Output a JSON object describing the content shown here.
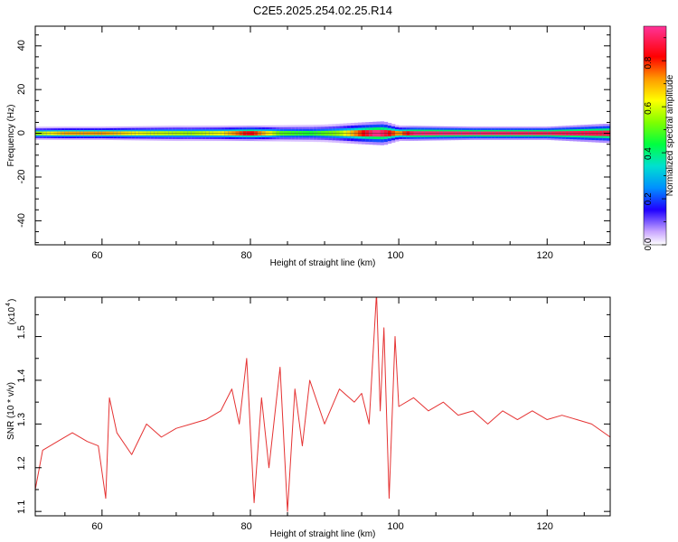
{
  "title": "C2E5.2025.254.02.25.R14",
  "chart_data": [
    {
      "type": "heatmap",
      "xlabel": "Height of straight line (km)",
      "ylabel": "Frequency (Hz)",
      "xlim": [
        51,
        128.5
      ],
      "ylim": [
        -51,
        49
      ],
      "xticks": [
        "60",
        "80",
        "100",
        "120"
      ],
      "yticks": [
        "40",
        "20",
        "0",
        "-20",
        "-40"
      ],
      "colorbar": {
        "label": "Normalized spectral amplitude",
        "range": [
          0.0,
          0.95
        ],
        "ticks": [
          "0.0",
          "0.2",
          "0.4",
          "0.6",
          "0.8"
        ]
      },
      "band": {
        "center_hz": 0,
        "half_width_hz": [
          [
            51,
            3
          ],
          [
            60,
            3
          ],
          [
            70,
            3.5
          ],
          [
            80,
            3.5
          ],
          [
            90,
            4
          ],
          [
            95,
            5
          ],
          [
            98,
            5.5
          ],
          [
            100,
            3.5
          ],
          [
            110,
            3
          ],
          [
            120,
            3
          ],
          [
            128.5,
            4.5
          ]
        ],
        "core_amplitude": [
          [
            51,
            0.55
          ],
          [
            55,
            0.7
          ],
          [
            60,
            0.72
          ],
          [
            66,
            0.6
          ],
          [
            72,
            0.55
          ],
          [
            76,
            0.62
          ],
          [
            80,
            0.85
          ],
          [
            84,
            0.5
          ],
          [
            88,
            0.45
          ],
          [
            92,
            0.55
          ],
          [
            95,
            0.8
          ],
          [
            97,
            0.95
          ],
          [
            98.5,
            0.85
          ],
          [
            100,
            0.7
          ],
          [
            102,
            0.92
          ],
          [
            110,
            0.92
          ],
          [
            120,
            0.9
          ],
          [
            128.5,
            0.88
          ]
        ]
      },
      "grid": false
    },
    {
      "type": "line",
      "xlabel": "Height of straight line (km)",
      "ylabel": "SNR (10 * v/v)",
      "y_multiplier": "(x10",
      "y_multiplier_exp": "4",
      "xlim": [
        51,
        128.5
      ],
      "ylim": [
        1.09,
        1.59
      ],
      "xticks": [
        "60",
        "80",
        "100",
        "120"
      ],
      "yticks": [
        "1.1",
        "1.2",
        "1.3",
        "1.4",
        "1.5"
      ],
      "color": "#e53333",
      "series": [
        {
          "x": [
            51,
            52,
            54,
            56,
            58,
            59.5,
            60.5,
            61,
            62,
            64,
            66,
            68,
            70,
            72,
            74,
            76,
            77.5,
            78.5,
            79.5,
            80.5,
            81.5,
            82.5,
            84,
            85,
            86,
            87,
            88,
            90,
            92,
            94,
            95,
            96,
            97,
            97.5,
            98,
            98.7,
            99.5,
            100,
            102,
            104,
            106,
            108,
            110,
            112,
            114,
            116,
            118,
            120,
            122,
            124,
            126,
            128.5
          ],
          "y": [
            1.15,
            1.24,
            1.26,
            1.28,
            1.26,
            1.25,
            1.13,
            1.36,
            1.28,
            1.23,
            1.3,
            1.27,
            1.29,
            1.3,
            1.31,
            1.33,
            1.38,
            1.3,
            1.45,
            1.12,
            1.36,
            1.2,
            1.43,
            1.1,
            1.38,
            1.25,
            1.4,
            1.3,
            1.38,
            1.35,
            1.37,
            1.3,
            1.6,
            1.33,
            1.52,
            1.13,
            1.5,
            1.34,
            1.36,
            1.33,
            1.35,
            1.32,
            1.33,
            1.3,
            1.33,
            1.31,
            1.33,
            1.31,
            1.32,
            1.31,
            1.3,
            1.27
          ]
        }
      ],
      "grid": false
    }
  ]
}
